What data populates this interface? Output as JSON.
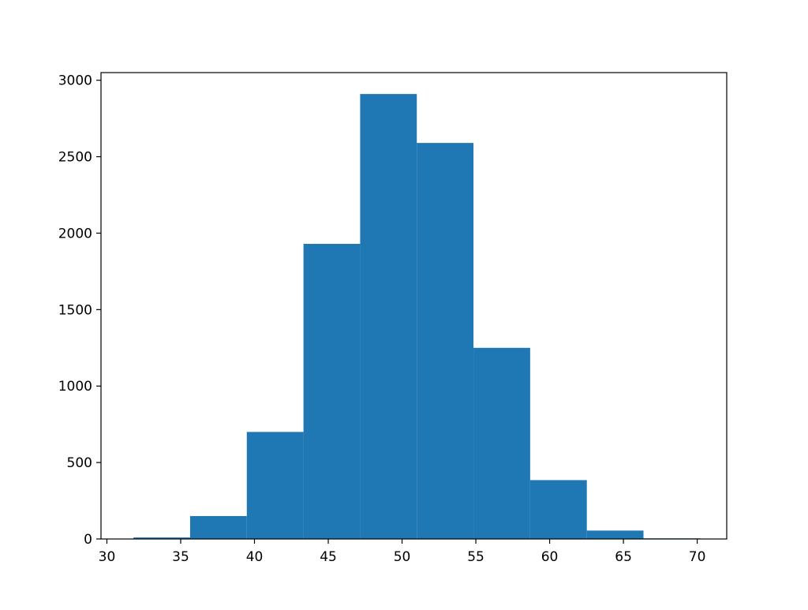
{
  "chart_data": {
    "type": "bar",
    "title": "",
    "xlabel": "",
    "ylabel": "",
    "bins": [
      {
        "x0": 31.8,
        "x1": 35.64,
        "count": 10
      },
      {
        "x0": 35.64,
        "x1": 39.48,
        "count": 150
      },
      {
        "x0": 39.48,
        "x1": 43.32,
        "count": 700
      },
      {
        "x0": 43.32,
        "x1": 47.16,
        "count": 1930
      },
      {
        "x0": 47.16,
        "x1": 51.0,
        "count": 2910
      },
      {
        "x0": 51.0,
        "x1": 54.84,
        "count": 2590
      },
      {
        "x0": 54.84,
        "x1": 58.68,
        "count": 1250
      },
      {
        "x0": 58.68,
        "x1": 62.52,
        "count": 385
      },
      {
        "x0": 62.52,
        "x1": 66.36,
        "count": 55
      },
      {
        "x0": 66.36,
        "x1": 70.2,
        "count": 4
      }
    ],
    "xlim": [
      29.6,
      72.0
    ],
    "ylim": [
      0,
      3050
    ],
    "x_ticks": [
      30,
      35,
      40,
      45,
      50,
      55,
      60,
      65,
      70
    ],
    "y_ticks": [
      0,
      500,
      1000,
      1500,
      2000,
      2500,
      3000
    ],
    "x_tick_labels": [
      "30",
      "35",
      "40",
      "45",
      "50",
      "55",
      "60",
      "65",
      "70"
    ],
    "y_tick_labels": [
      "0",
      "500",
      "1000",
      "1500",
      "2000",
      "2500",
      "3000"
    ],
    "bar_color": "#1f77b4",
    "grid": false,
    "legend": "none"
  }
}
